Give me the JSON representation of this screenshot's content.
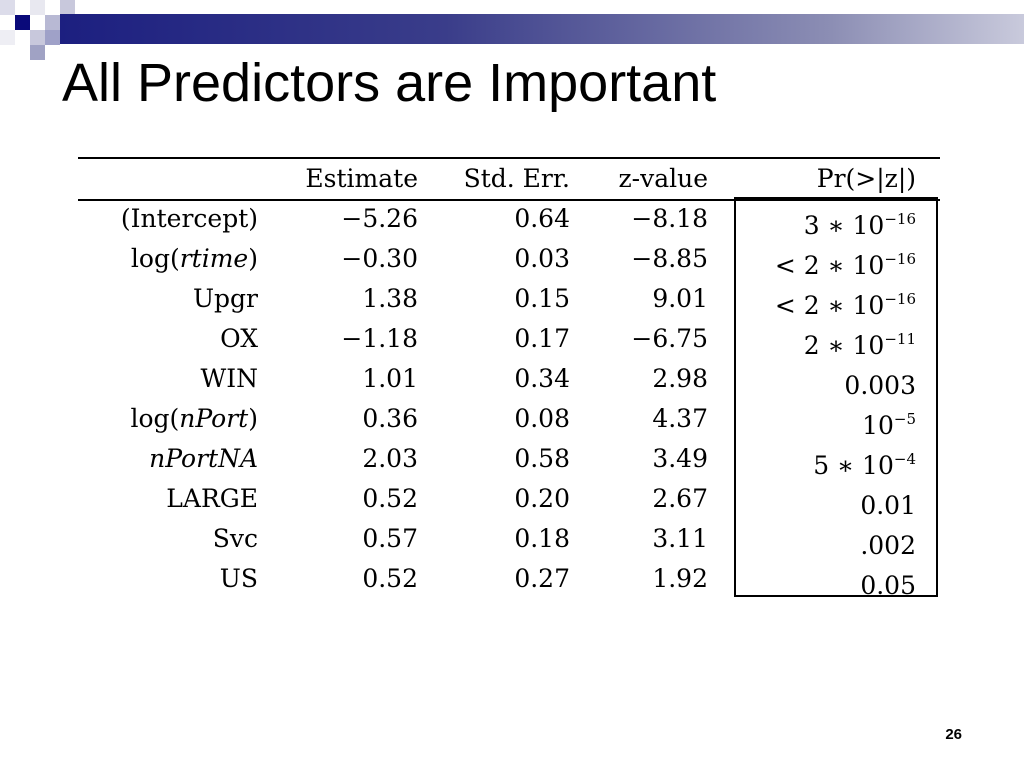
{
  "slide": {
    "title": "All Predictors are Important",
    "page_number": "26",
    "accent_colors": [
      "#1c1f80",
      "#8c8eb4",
      "#c9cadc"
    ]
  },
  "table": {
    "headers": [
      "",
      "Estimate",
      "Std. Err.",
      "z-value",
      "Pr(>|z|)"
    ],
    "rows": [
      {
        "label": {
          "pre": "(Intercept)",
          "it": "",
          "post": ""
        },
        "estimate": "−5.26",
        "stderr": "0.64",
        "z": "−8.18",
        "p": {
          "base": "3 ∗ 10",
          "exp": "−16"
        }
      },
      {
        "label": {
          "pre": "log(",
          "it": "rtime",
          "post": ")"
        },
        "estimate": "−0.30",
        "stderr": "0.03",
        "z": "−8.85",
        "p": {
          "base": "< 2 ∗ 10",
          "exp": "−16"
        }
      },
      {
        "label": {
          "pre": "Upgr",
          "it": "",
          "post": ""
        },
        "estimate": "1.38",
        "stderr": "0.15",
        "z": "9.01",
        "p": {
          "base": "< 2 ∗ 10",
          "exp": "−16"
        }
      },
      {
        "label": {
          "pre": "OX",
          "it": "",
          "post": ""
        },
        "estimate": "−1.18",
        "stderr": "0.17",
        "z": "−6.75",
        "p": {
          "base": "2 ∗ 10",
          "exp": "−11"
        }
      },
      {
        "label": {
          "pre": "WIN",
          "it": "",
          "post": ""
        },
        "estimate": "1.01",
        "stderr": "0.34",
        "z": "2.98",
        "p": {
          "base": "0.003",
          "exp": ""
        }
      },
      {
        "label": {
          "pre": "log(",
          "it": "nPort",
          "post": ")"
        },
        "estimate": "0.36",
        "stderr": "0.08",
        "z": "4.37",
        "p": {
          "base": "10",
          "exp": "−5"
        }
      },
      {
        "label": {
          "pre": "",
          "it": "nPortNA",
          "post": ""
        },
        "estimate": "2.03",
        "stderr": "0.58",
        "z": "3.49",
        "p": {
          "base": "5 ∗ 10",
          "exp": "−4"
        }
      },
      {
        "label": {
          "pre": "LARGE",
          "it": "",
          "post": ""
        },
        "estimate": "0.52",
        "stderr": "0.20",
        "z": "2.67",
        "p": {
          "base": "0.01",
          "exp": ""
        }
      },
      {
        "label": {
          "pre": "Svc",
          "it": "",
          "post": ""
        },
        "estimate": "0.57",
        "stderr": "0.18",
        "z": "3.11",
        "p": {
          "base": ".002",
          "exp": ""
        }
      },
      {
        "label": {
          "pre": "US",
          "it": "",
          "post": ""
        },
        "estimate": "0.52",
        "stderr": "0.27",
        "z": "1.92",
        "p": {
          "base": "0.05",
          "exp": ""
        }
      }
    ]
  }
}
